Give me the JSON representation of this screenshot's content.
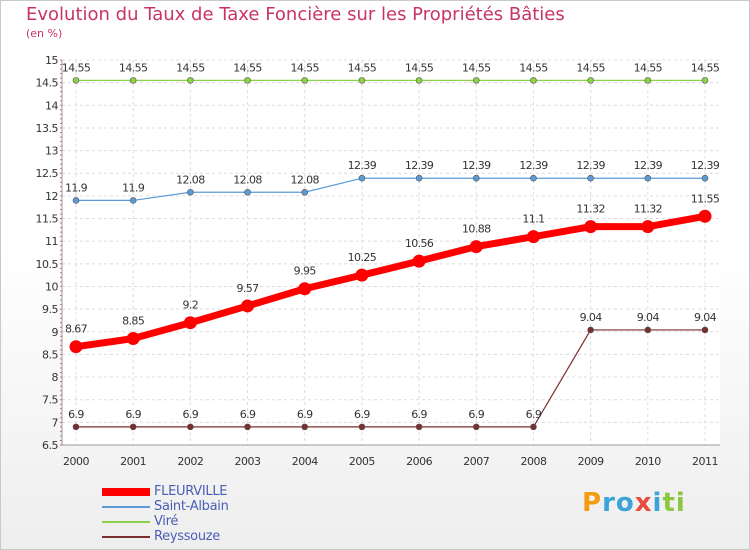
{
  "title": "Evolution du Taux de Taxe Foncière sur les Propriétés Bâties",
  "unit_label": "(en %)",
  "brand": {
    "letters": [
      "P",
      "r",
      "o",
      "x",
      "i",
      "t",
      "i"
    ],
    "colors": [
      "#f39c12",
      "#3aa3d8",
      "#3aa3d8",
      "#e74c3c",
      "#3aa3d8",
      "#8cc63f",
      "#8cc63f"
    ]
  },
  "chart_data": {
    "type": "line",
    "title": "Evolution du Taux de Taxe Foncière sur les Propriétés Bâties",
    "ylabel": "(en %)",
    "xlabel": "",
    "ylim": [
      6.5,
      15
    ],
    "yticks": [
      "6.5",
      "7",
      "7.5",
      "8",
      "8.5",
      "9",
      "9.5",
      "10",
      "10.5",
      "11",
      "11.5",
      "12",
      "12.5",
      "13",
      "13.5",
      "14",
      "14.5",
      "15"
    ],
    "x": [
      "2000",
      "2001",
      "2002",
      "2003",
      "2004",
      "2005",
      "2006",
      "2007",
      "2008",
      "2009",
      "2010",
      "2011"
    ],
    "grid": true,
    "legend_position": "bottom-left",
    "series": [
      {
        "name": "FLEURVILLE",
        "color": "#ff0000",
        "values": [
          8.67,
          8.85,
          9.2,
          9.57,
          9.95,
          10.25,
          10.56,
          10.88,
          11.1,
          11.32,
          11.32,
          11.55
        ],
        "labels": [
          "8.67",
          "8.85",
          "9.2",
          "9.57",
          "9.95",
          "10.25",
          "10.56",
          "10.88",
          "11.1",
          "11.32",
          "11.32",
          "11.55"
        ]
      },
      {
        "name": "Saint-Albain",
        "color": "#5b9bd5",
        "values": [
          11.9,
          11.9,
          12.08,
          12.08,
          12.08,
          12.39,
          12.39,
          12.39,
          12.39,
          12.39,
          12.39,
          12.39
        ],
        "labels": [
          "11.9",
          "11.9",
          "12.08",
          "12.08",
          "12.08",
          "12.39",
          "12.39",
          "12.39",
          "12.39",
          "12.39",
          "12.39",
          "12.39"
        ]
      },
      {
        "name": "Viré",
        "color": "#8cd14a",
        "values": [
          14.55,
          14.55,
          14.55,
          14.55,
          14.55,
          14.55,
          14.55,
          14.55,
          14.55,
          14.55,
          14.55,
          14.55
        ],
        "labels": [
          "14.55",
          "14.55",
          "14.55",
          "14.55",
          "14.55",
          "14.55",
          "14.55",
          "14.55",
          "14.55",
          "14.55",
          "14.55",
          "14.55"
        ]
      },
      {
        "name": "Reyssouze",
        "color": "#7a2e2e",
        "values": [
          6.9,
          6.9,
          6.9,
          6.9,
          6.9,
          6.9,
          6.9,
          6.9,
          6.9,
          9.04,
          9.04,
          9.04
        ],
        "labels": [
          "6.9",
          "6.9",
          "6.9",
          "6.9",
          "6.9",
          "6.9",
          "6.9",
          "6.9",
          "6.9",
          "9.04",
          "9.04",
          "9.04"
        ]
      }
    ]
  }
}
